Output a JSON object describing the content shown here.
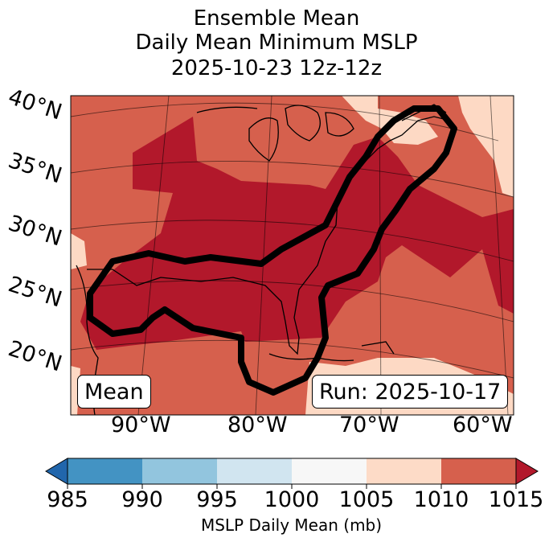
{
  "title": {
    "line1": "Ensemble Mean",
    "line2": "Daily Mean Minimum MSLP",
    "line3": "2025-10-23 12z-12z"
  },
  "map": {
    "lat_labels": [
      "40°N",
      "35°N",
      "30°N",
      "25°N",
      "20°N"
    ],
    "lon_labels": [
      "90°W",
      "80°W",
      "70°W",
      "60°W"
    ],
    "badge_left": "Mean",
    "badge_right": "Run: 2025-10-17",
    "colors": {
      "c1005_1010": "#fdd9c4",
      "c1010_1015": "#d6604d",
      "over_1015": "#b2182b",
      "contour": "#000000"
    }
  },
  "colorbar": {
    "label": "MSLP Daily Mean (mb)",
    "ticks": [
      "985",
      "990",
      "995",
      "1000",
      "1005",
      "1010",
      "1015"
    ],
    "colors": [
      "#4393c3",
      "#92c5de",
      "#d1e5f0",
      "#f7f7f7",
      "#fddbc7",
      "#d6604d"
    ],
    "under_color": "#2166ac",
    "over_color": "#b2182b"
  }
}
